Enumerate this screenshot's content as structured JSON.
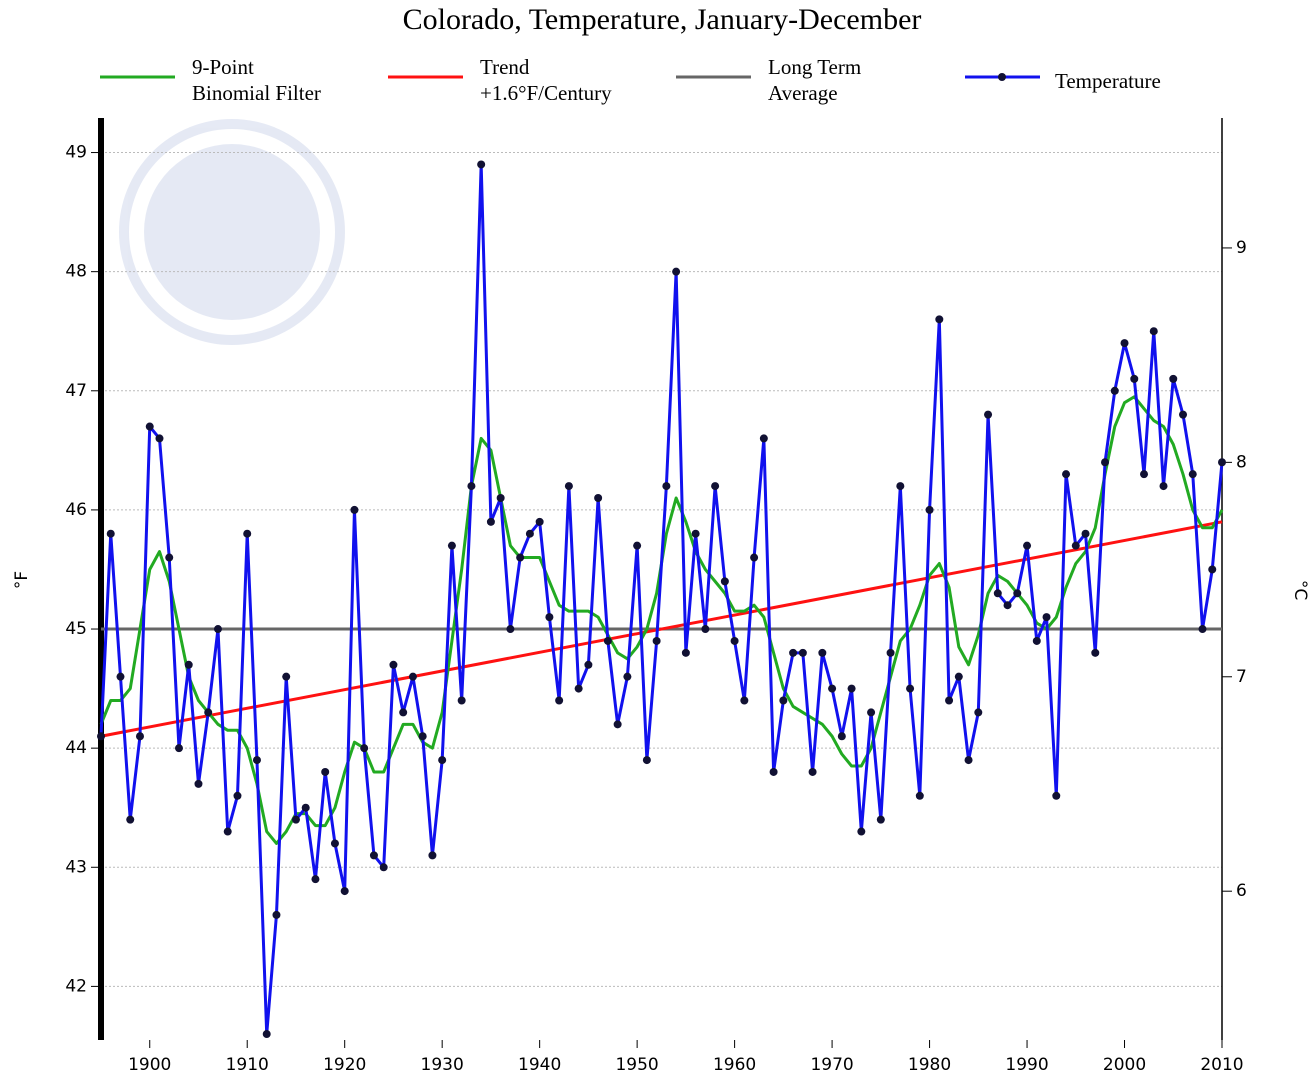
{
  "chart_data": {
    "type": "line",
    "title": "Colorado, Temperature, January-December",
    "ylabel": "°F",
    "y2label": "°C",
    "xlim": [
      1895,
      2010
    ],
    "xticks": [
      1900,
      1910,
      1920,
      1930,
      1940,
      1950,
      1960,
      1970,
      1980,
      1990,
      2000,
      2010
    ],
    "ylim": [
      41.55,
      49.29
    ],
    "yticks": [
      42,
      43,
      44,
      45,
      46,
      47,
      48,
      49
    ],
    "y2lim": [
      5.306,
      9.606
    ],
    "y2ticks": [
      6,
      7,
      8,
      9
    ],
    "grid": true,
    "x": [
      1895,
      1896,
      1897,
      1898,
      1899,
      1900,
      1901,
      1902,
      1903,
      1904,
      1905,
      1906,
      1907,
      1908,
      1909,
      1910,
      1911,
      1912,
      1913,
      1914,
      1915,
      1916,
      1917,
      1918,
      1919,
      1920,
      1921,
      1922,
      1923,
      1924,
      1925,
      1926,
      1927,
      1928,
      1929,
      1930,
      1931,
      1932,
      1933,
      1934,
      1935,
      1936,
      1937,
      1938,
      1939,
      1940,
      1941,
      1942,
      1943,
      1944,
      1945,
      1946,
      1947,
      1948,
      1949,
      1950,
      1951,
      1952,
      1953,
      1954,
      1955,
      1956,
      1957,
      1958,
      1959,
      1960,
      1961,
      1962,
      1963,
      1964,
      1965,
      1966,
      1967,
      1968,
      1969,
      1970,
      1971,
      1972,
      1973,
      1974,
      1975,
      1976,
      1977,
      1978,
      1979,
      1980,
      1981,
      1982,
      1983,
      1984,
      1985,
      1986,
      1987,
      1988,
      1989,
      1990,
      1991,
      1992,
      1993,
      1994,
      1995,
      1996,
      1997,
      1998,
      1999,
      2000,
      2001,
      2002,
      2003,
      2004,
      2005,
      2006,
      2007,
      2008,
      2009,
      2010
    ],
    "series": [
      {
        "name": [
          "9-Point",
          "Binomial Filter"
        ],
        "color": "#22aa22",
        "markers": false,
        "values": [
          44.2,
          44.4,
          44.4,
          44.5,
          45.0,
          45.5,
          45.65,
          45.4,
          45.0,
          44.6,
          44.4,
          44.3,
          44.2,
          44.15,
          44.15,
          44.0,
          43.7,
          43.3,
          43.2,
          43.3,
          43.45,
          43.45,
          43.35,
          43.35,
          43.5,
          43.8,
          44.05,
          44.0,
          43.8,
          43.8,
          44.0,
          44.2,
          44.2,
          44.05,
          44.0,
          44.3,
          44.9,
          45.5,
          46.2,
          46.6,
          46.5,
          46.1,
          45.7,
          45.6,
          45.6,
          45.6,
          45.4,
          45.2,
          45.15,
          45.15,
          45.15,
          45.1,
          44.95,
          44.8,
          44.75,
          44.85,
          45.0,
          45.3,
          45.8,
          46.1,
          45.9,
          45.65,
          45.5,
          45.4,
          45.3,
          45.15,
          45.15,
          45.2,
          45.1,
          44.8,
          44.5,
          44.35,
          44.3,
          44.25,
          44.2,
          44.1,
          43.95,
          43.85,
          43.85,
          44.0,
          44.3,
          44.6,
          44.9,
          45.0,
          45.2,
          45.45,
          45.55,
          45.35,
          44.85,
          44.7,
          44.95,
          45.3,
          45.45,
          45.4,
          45.3,
          45.2,
          45.05,
          45.0,
          45.1,
          45.35,
          45.55,
          45.65,
          45.85,
          46.3,
          46.7,
          46.9,
          46.95,
          46.85,
          46.75,
          46.7,
          46.55,
          46.3,
          46.0,
          45.85,
          45.85,
          46.0
        ]
      },
      {
        "name": [
          "Trend",
          "+1.6°F/Century"
        ],
        "color": "#ff1111",
        "markers": false,
        "x": [
          1895,
          2010
        ],
        "values": [
          44.1,
          45.9
        ]
      },
      {
        "name": [
          "Long Term",
          "Average"
        ],
        "color": "#666666",
        "markers": false,
        "x": [
          1895,
          2010
        ],
        "values": [
          45.0,
          45.0
        ]
      },
      {
        "name": "Temperature",
        "color": "#1111ee",
        "markers": true,
        "values": [
          44.1,
          45.8,
          44.6,
          43.4,
          44.1,
          46.7,
          46.6,
          45.6,
          44.0,
          44.7,
          43.7,
          44.3,
          45.0,
          43.3,
          43.6,
          45.8,
          43.9,
          41.6,
          42.6,
          44.6,
          43.4,
          43.5,
          42.9,
          43.8,
          43.2,
          42.8,
          46.0,
          44.0,
          43.1,
          43.0,
          44.7,
          44.3,
          44.6,
          44.1,
          43.1,
          43.9,
          45.7,
          44.4,
          46.2,
          48.9,
          45.9,
          46.1,
          45.0,
          45.6,
          45.8,
          45.9,
          45.1,
          44.4,
          46.2,
          44.5,
          44.7,
          46.1,
          44.9,
          44.2,
          44.6,
          45.7,
          43.9,
          44.9,
          46.2,
          48.0,
          44.8,
          45.8,
          45.0,
          46.2,
          45.4,
          44.9,
          44.4,
          45.6,
          46.6,
          43.8,
          44.4,
          44.8,
          44.8,
          43.8,
          44.8,
          44.5,
          44.1,
          44.5,
          43.3,
          44.3,
          43.4,
          44.8,
          46.2,
          44.5,
          43.6,
          46.0,
          47.6,
          44.4,
          44.6,
          43.9,
          44.3,
          46.8,
          45.3,
          45.2,
          45.3,
          45.7,
          44.9,
          45.1,
          43.6,
          46.3,
          45.7,
          45.8,
          44.8,
          46.4,
          47.0,
          47.4,
          47.1,
          46.3,
          47.5,
          46.2,
          47.1,
          46.8,
          46.3,
          45.0,
          45.5,
          46.4
        ]
      }
    ]
  }
}
